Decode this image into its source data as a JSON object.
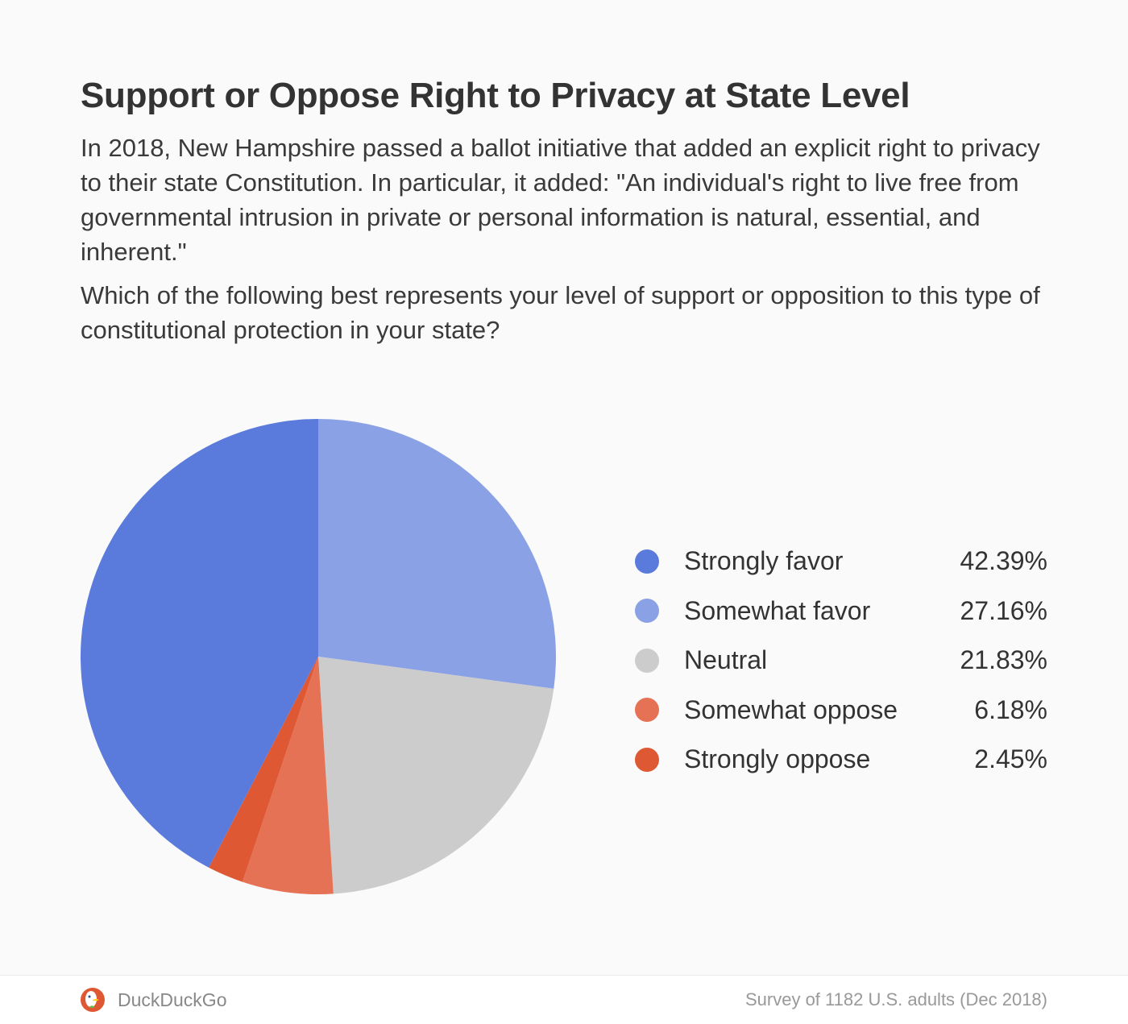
{
  "header": {
    "title": "Support or Oppose Right to Privacy at State Level",
    "description": "In 2018, New Hampshire passed a ballot initiative that added an explicit right to privacy to their state Constitution. In particular, it added: \"An individual's right to live free from governmental intrusion in private or personal information is natural, essential, and inherent.\"",
    "question": "Which of the following best represents your level of support or opposition to this type of constitutional protection in your state?"
  },
  "chart_data": {
    "type": "pie",
    "title": "Support or Oppose Right to Privacy at State Level",
    "legend_position": "right",
    "categories": [
      "Strongly favor",
      "Somewhat favor",
      "Neutral",
      "Somewhat oppose",
      "Strongly oppose"
    ],
    "values": [
      42.39,
      27.16,
      21.83,
      6.18,
      2.45
    ],
    "value_labels": [
      "42.39%",
      "27.16%",
      "21.83%",
      "6.18%",
      "2.45%"
    ],
    "colors": [
      "#5a7bdc",
      "#8aa1e5",
      "#cccccc",
      "#e57255",
      "#de5833"
    ],
    "slice_order_clockwise_from_top": [
      "Somewhat favor",
      "Neutral",
      "Somewhat oppose",
      "Strongly oppose",
      "Strongly favor"
    ]
  },
  "footer": {
    "brand": "DuckDuckGo",
    "source": "Survey of 1182 U.S. adults (Dec 2018)"
  }
}
